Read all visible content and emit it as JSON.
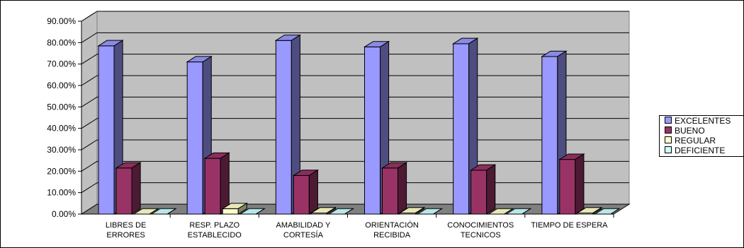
{
  "chart_data": {
    "type": "bar",
    "categories": [
      [
        "LIBRES DE",
        "ERRORES"
      ],
      [
        "RESP.  PLAZO",
        "ESTABLECIDO"
      ],
      [
        "AMABILIDAD Y",
        "CORTESÍA"
      ],
      [
        "ORIENTACIÓN",
        "RECIBIDA"
      ],
      [
        "CONOCIMIENTOS",
        "TECNICOS"
      ],
      [
        "TIEMPO DE ESPERA"
      ]
    ],
    "series": [
      {
        "name": "EXCELENTES",
        "color": "#9999ff",
        "values": [
          78.5,
          71.0,
          81.0,
          78.0,
          79.5,
          73.5
        ]
      },
      {
        "name": "BUENO",
        "color": "#993366",
        "values": [
          21.5,
          26.0,
          18.0,
          21.5,
          20.5,
          25.5
        ]
      },
      {
        "name": "REGULAR",
        "color": "#ffffcc",
        "values": [
          0.0,
          2.5,
          0.5,
          0.5,
          0.0,
          0.5
        ]
      },
      {
        "name": "DEFICIENTE",
        "color": "#ccffff",
        "values": [
          0.0,
          0.0,
          0.0,
          0.0,
          0.0,
          0.0
        ]
      }
    ],
    "yticks": [
      "0.00%",
      "10.00%",
      "20.00%",
      "30.00%",
      "40.00%",
      "50.00%",
      "60.00%",
      "70.00%",
      "80.00%",
      "90.00%"
    ],
    "ylim": [
      0,
      90
    ],
    "grid": true,
    "style": "3d",
    "legend_position": "right"
  }
}
